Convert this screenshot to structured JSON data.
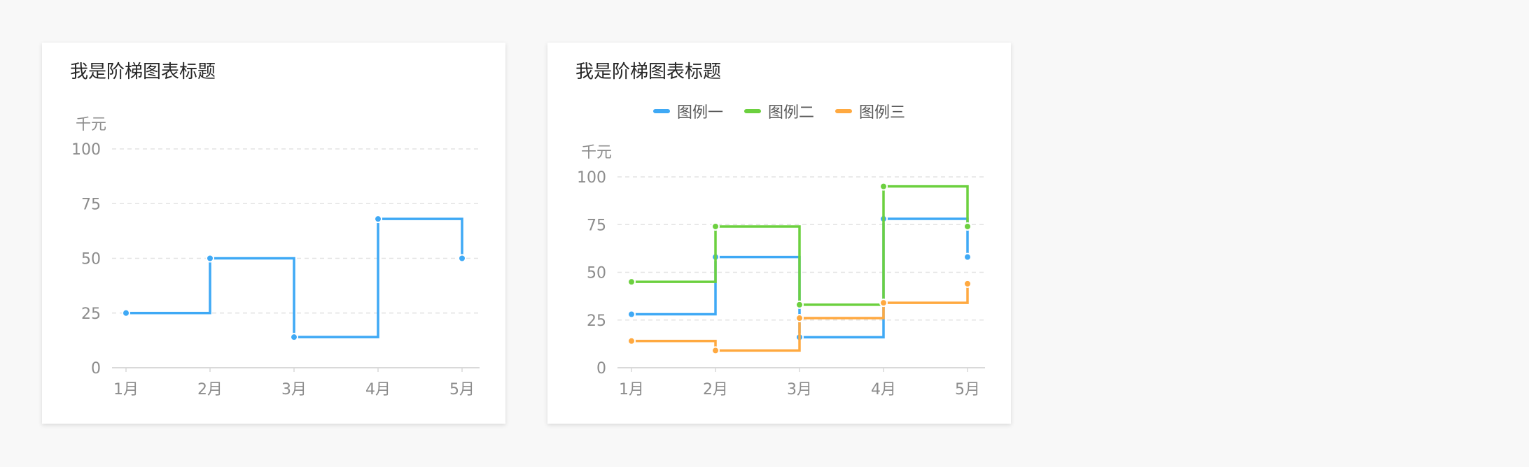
{
  "chart_data": [
    {
      "type": "line",
      "step": "end",
      "title": "我是阶梯图表标题",
      "ylabel": "千元",
      "categories": [
        "1月",
        "2月",
        "3月",
        "4月",
        "5月"
      ],
      "yticks": [
        0,
        25,
        50,
        75,
        100
      ],
      "ylim": [
        0,
        100
      ],
      "grid": true,
      "legend": false,
      "series": [
        {
          "values": [
            25,
            50,
            14,
            68,
            50
          ],
          "color": "#3fa9f5"
        }
      ]
    },
    {
      "type": "line",
      "step": "end",
      "title": "我是阶梯图表标题",
      "ylabel": "千元",
      "categories": [
        "1月",
        "2月",
        "3月",
        "4月",
        "5月"
      ],
      "yticks": [
        0,
        25,
        50,
        75,
        100
      ],
      "ylim": [
        0,
        100
      ],
      "grid": true,
      "legend": "top-center",
      "series": [
        {
          "name": "图例一",
          "values": [
            28,
            58,
            16,
            78,
            58
          ],
          "color": "#3fa9f5"
        },
        {
          "name": "图例二",
          "values": [
            45,
            74,
            33,
            95,
            74
          ],
          "color": "#6cd03f"
        },
        {
          "name": "图例三",
          "values": [
            14,
            9,
            26,
            34,
            44
          ],
          "color": "#ffa940"
        }
      ]
    }
  ]
}
